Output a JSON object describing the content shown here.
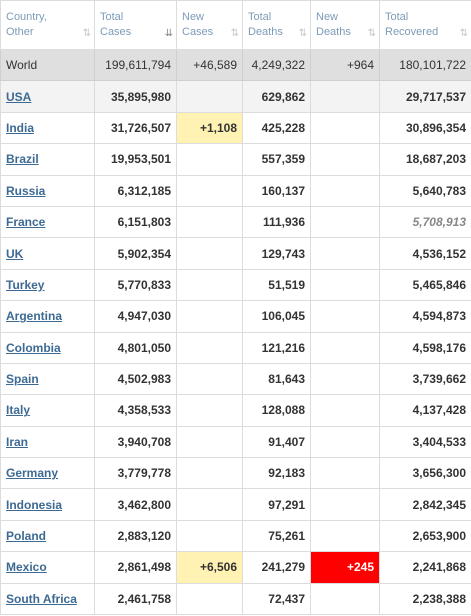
{
  "headers": [
    {
      "line1": "Country,",
      "line2": "Other"
    },
    {
      "line1": "Total",
      "line2": "Cases"
    },
    {
      "line1": "New",
      "line2": "Cases"
    },
    {
      "line1": "Total",
      "line2": "Deaths"
    },
    {
      "line1": "New",
      "line2": "Deaths"
    },
    {
      "line1": "Total",
      "line2": "Recovered"
    }
  ],
  "world": {
    "country": "World",
    "total_cases": "199,611,794",
    "new_cases": "+46,589",
    "total_deaths": "4,249,322",
    "new_deaths": "+964",
    "total_recovered": "180,101,722"
  },
  "rows": [
    {
      "country": "USA",
      "total_cases": "35,895,980",
      "new_cases": "",
      "total_deaths": "629,862",
      "new_deaths": "",
      "total_recovered": "29,717,537"
    },
    {
      "country": "India",
      "total_cases": "31,726,507",
      "new_cases": "+1,108",
      "total_deaths": "425,228",
      "new_deaths": "",
      "total_recovered": "30,896,354"
    },
    {
      "country": "Brazil",
      "total_cases": "19,953,501",
      "new_cases": "",
      "total_deaths": "557,359",
      "new_deaths": "",
      "total_recovered": "18,687,203"
    },
    {
      "country": "Russia",
      "total_cases": "6,312,185",
      "new_cases": "",
      "total_deaths": "160,137",
      "new_deaths": "",
      "total_recovered": "5,640,783"
    },
    {
      "country": "France",
      "total_cases": "6,151,803",
      "new_cases": "",
      "total_deaths": "111,936",
      "new_deaths": "",
      "total_recovered": "5,708,913"
    },
    {
      "country": "UK",
      "total_cases": "5,902,354",
      "new_cases": "",
      "total_deaths": "129,743",
      "new_deaths": "",
      "total_recovered": "4,536,152"
    },
    {
      "country": "Turkey",
      "total_cases": "5,770,833",
      "new_cases": "",
      "total_deaths": "51,519",
      "new_deaths": "",
      "total_recovered": "5,465,846"
    },
    {
      "country": "Argentina",
      "total_cases": "4,947,030",
      "new_cases": "",
      "total_deaths": "106,045",
      "new_deaths": "",
      "total_recovered": "4,594,873"
    },
    {
      "country": "Colombia",
      "total_cases": "4,801,050",
      "new_cases": "",
      "total_deaths": "121,216",
      "new_deaths": "",
      "total_recovered": "4,598,176"
    },
    {
      "country": "Spain",
      "total_cases": "4,502,983",
      "new_cases": "",
      "total_deaths": "81,643",
      "new_deaths": "",
      "total_recovered": "3,739,662"
    },
    {
      "country": "Italy",
      "total_cases": "4,358,533",
      "new_cases": "",
      "total_deaths": "128,088",
      "new_deaths": "",
      "total_recovered": "4,137,428"
    },
    {
      "country": "Iran",
      "total_cases": "3,940,708",
      "new_cases": "",
      "total_deaths": "91,407",
      "new_deaths": "",
      "total_recovered": "3,404,533"
    },
    {
      "country": "Germany",
      "total_cases": "3,779,778",
      "new_cases": "",
      "total_deaths": "92,183",
      "new_deaths": "",
      "total_recovered": "3,656,300"
    },
    {
      "country": "Indonesia",
      "total_cases": "3,462,800",
      "new_cases": "",
      "total_deaths": "97,291",
      "new_deaths": "",
      "total_recovered": "2,842,345"
    },
    {
      "country": "Poland",
      "total_cases": "2,883,120",
      "new_cases": "",
      "total_deaths": "75,261",
      "new_deaths": "",
      "total_recovered": "2,653,900"
    },
    {
      "country": "Mexico",
      "total_cases": "2,861,498",
      "new_cases": "+6,506",
      "total_deaths": "241,279",
      "new_deaths": "+245",
      "total_recovered": "2,241,868"
    },
    {
      "country": "South Africa",
      "total_cases": "2,461,758",
      "new_cases": "",
      "total_deaths": "72,437",
      "new_deaths": "",
      "total_recovered": "2,238,388"
    }
  ],
  "colors": {
    "header_text": "#7d9bb8",
    "link": "#3d6a93",
    "world_bg": "#dfdfdf",
    "new_cases_bg": "#fff2b3",
    "new_deaths_bg": "#ff0000",
    "italic_estimate": "#888888"
  },
  "icons": {
    "sort": "sort-arrows-icon",
    "sort_active": "sort-descending-icon"
  }
}
